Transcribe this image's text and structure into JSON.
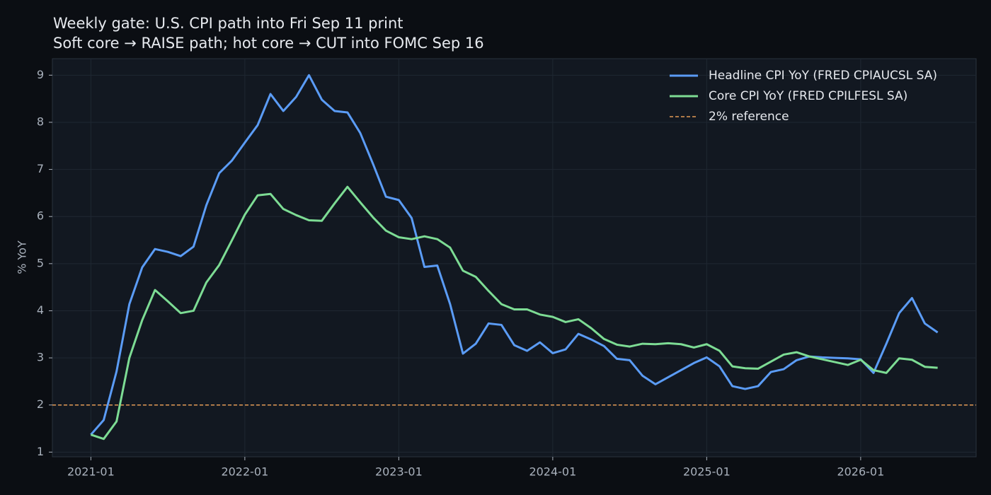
{
  "chart_data": {
    "type": "line",
    "title": "Weekly gate: U.S. CPI path into Fri Sep 11 print",
    "subtitle": "Soft core → RAISE path; hot core → CUT into FOMC Sep 16",
    "y_label": "% YoY",
    "x": [
      "2021-01",
      "2021-02",
      "2021-03",
      "2021-04",
      "2021-05",
      "2021-06",
      "2021-07",
      "2021-08",
      "2021-09",
      "2021-10",
      "2021-11",
      "2021-12",
      "2022-01",
      "2022-02",
      "2022-03",
      "2022-04",
      "2022-05",
      "2022-06",
      "2022-07",
      "2022-08",
      "2022-09",
      "2022-10",
      "2022-11",
      "2022-12",
      "2023-01",
      "2023-02",
      "2023-03",
      "2023-04",
      "2023-05",
      "2023-06",
      "2023-07",
      "2023-08",
      "2023-09",
      "2023-10",
      "2023-11",
      "2023-12",
      "2024-01",
      "2024-02",
      "2024-03",
      "2024-04",
      "2024-05",
      "2024-06",
      "2024-07",
      "2024-08",
      "2024-09",
      "2024-10",
      "2024-11",
      "2024-12",
      "2025-01",
      "2025-02",
      "2025-03",
      "2025-04",
      "2025-05",
      "2025-06",
      "2025-07",
      "2025-08",
      "2025-09",
      "2025-10",
      "2025-11",
      "2025-12",
      "2026-01",
      "2026-02",
      "2026-03",
      "2026-04",
      "2026-05",
      "2026-06",
      "2026-07"
    ],
    "series": [
      {
        "name": "Headline CPI YoY (FRED CPIAUCSL SA)",
        "color": "#5b9cf6",
        "values": [
          1.37,
          1.68,
          2.71,
          4.14,
          4.92,
          5.31,
          5.25,
          5.16,
          5.36,
          6.24,
          6.92,
          7.19,
          7.57,
          7.94,
          8.6,
          8.24,
          8.54,
          9.0,
          8.48,
          8.24,
          8.21,
          7.77,
          7.11,
          6.42,
          6.35,
          5.97,
          4.93,
          4.96,
          4.14,
          3.09,
          3.3,
          3.73,
          3.7,
          3.27,
          3.15,
          3.33,
          3.1,
          3.18,
          3.51,
          3.39,
          3.25,
          2.98,
          2.95,
          2.62,
          2.44,
          2.59,
          2.74,
          2.89,
          3.01,
          2.82,
          2.4,
          2.34,
          2.4,
          2.7,
          2.76,
          2.95,
          3.03,
          3.01,
          3.0,
          2.99,
          2.97,
          2.68,
          3.3,
          3.95,
          4.27,
          3.73,
          3.54
        ]
      },
      {
        "name": "Core CPI YoY (FRED CPILFESL SA)",
        "color": "#7ddc94",
        "values": [
          1.37,
          1.28,
          1.65,
          3.0,
          3.8,
          4.44,
          4.2,
          3.95,
          4.0,
          4.6,
          4.97,
          5.5,
          6.04,
          6.45,
          6.48,
          6.16,
          6.03,
          5.92,
          5.91,
          6.28,
          6.63,
          6.3,
          5.98,
          5.7,
          5.56,
          5.52,
          5.58,
          5.52,
          5.34,
          4.85,
          4.72,
          4.42,
          4.14,
          4.03,
          4.03,
          3.92,
          3.87,
          3.76,
          3.82,
          3.63,
          3.4,
          3.28,
          3.24,
          3.3,
          3.29,
          3.31,
          3.29,
          3.22,
          3.29,
          3.15,
          2.82,
          2.78,
          2.77,
          2.92,
          3.07,
          3.12,
          3.03,
          2.97,
          2.91,
          2.85,
          2.96,
          2.74,
          2.68,
          2.99,
          2.96,
          2.81,
          2.79
        ]
      }
    ],
    "reference": {
      "name": "2% reference",
      "value": 2,
      "color": "#e39a55"
    },
    "xlim": [
      "2020-10",
      "2026-10"
    ],
    "xticks": [
      "2021-01",
      "2022-01",
      "2023-01",
      "2024-01",
      "2025-01",
      "2026-01"
    ],
    "ylim": [
      0.9,
      9.35
    ],
    "yticks": [
      1,
      2,
      3,
      4,
      5,
      6,
      7,
      8,
      9
    ],
    "grid": true,
    "legend": "upper-right"
  }
}
